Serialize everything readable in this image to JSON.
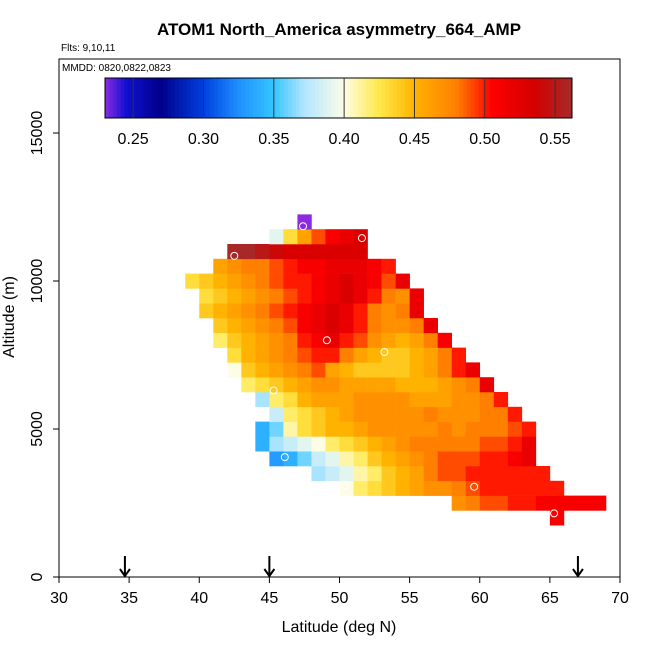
{
  "chart_data": {
    "type": "heatmap",
    "title": "ATOM1 North_America asymmetry_664_AMP",
    "flights_text": "Flts: 9,10,11",
    "mmdd_text": "MMDD: 0820,0822,0823",
    "xlabel": "Latitude (deg N)",
    "ylabel": "Altitude (m)",
    "xlim": [
      30,
      70
    ],
    "ylim": [
      0,
      17500
    ],
    "xticks": [
      30,
      35,
      40,
      45,
      50,
      55,
      60,
      65,
      70
    ],
    "yticks": [
      0,
      5000,
      10000,
      15000
    ],
    "colorbar": {
      "min": 0.23,
      "max": 0.562,
      "ticks": [
        0.25,
        0.3,
        0.35,
        0.4,
        0.45,
        0.5,
        0.55
      ],
      "tick_labels": [
        "0.25",
        "0.30",
        "0.35",
        "0.40",
        "0.45",
        "0.50",
        "0.55"
      ],
      "stops": [
        {
          "v": 0.23,
          "c": "#8a2be2"
        },
        {
          "v": 0.245,
          "c": "#1010d0"
        },
        {
          "v": 0.27,
          "c": "#00008b"
        },
        {
          "v": 0.3,
          "c": "#0040e0"
        },
        {
          "v": 0.325,
          "c": "#1e90ff"
        },
        {
          "v": 0.35,
          "c": "#35c5ff"
        },
        {
          "v": 0.372,
          "c": "#b4e6ff"
        },
        {
          "v": 0.4,
          "c": "#fdfde6"
        },
        {
          "v": 0.425,
          "c": "#ffe84a"
        },
        {
          "v": 0.45,
          "c": "#ffb300"
        },
        {
          "v": 0.48,
          "c": "#ff7f00"
        },
        {
          "v": 0.505,
          "c": "#ff0000"
        },
        {
          "v": 0.535,
          "c": "#d40000"
        },
        {
          "v": 0.562,
          "c": "#a52a2a"
        }
      ]
    },
    "cell_size": {
      "lat": 1.0,
      "alt": 500
    },
    "rows": [
      {
        "alt": 2000,
        "lat0": 65.0,
        "values": [
          0.51
        ]
      },
      {
        "alt": 2500,
        "lat0": 58.0,
        "values": [
          0.47,
          0.48,
          0.49,
          0.49,
          0.5,
          0.5,
          0.51,
          0.51,
          0.51,
          0.51,
          0.51
        ]
      },
      {
        "alt": 3000,
        "lat0": 50.0,
        "values": [
          0.4,
          0.42,
          0.43,
          0.44,
          0.45,
          0.46,
          0.47,
          0.47,
          0.48,
          0.49,
          0.5,
          0.5,
          0.5,
          0.5,
          0.5,
          0.5
        ]
      },
      {
        "alt": 3500,
        "lat0": 48.0,
        "values": [
          0.37,
          0.38,
          0.39,
          0.41,
          0.42,
          0.44,
          0.45,
          0.46,
          0.48,
          0.49,
          0.49,
          0.5,
          0.5,
          0.5,
          0.5,
          0.5,
          0.5
        ]
      },
      {
        "alt": 4000,
        "lat0": 45.0,
        "values": [
          0.33,
          0.34,
          0.36,
          0.38,
          0.39,
          0.41,
          0.42,
          0.44,
          0.45,
          0.46,
          0.47,
          0.48,
          0.49,
          0.49,
          0.49,
          0.5,
          0.5,
          0.51,
          0.52
        ]
      },
      {
        "alt": 4500,
        "lat0": 44.0,
        "values": [
          0.34,
          0.37,
          0.38,
          0.39,
          0.4,
          0.42,
          0.43,
          0.44,
          0.45,
          0.46,
          0.47,
          0.48,
          0.48,
          0.48,
          0.48,
          0.48,
          0.49,
          0.49,
          0.5,
          0.52
        ]
      },
      {
        "alt": 5000,
        "lat0": 44.0,
        "values": [
          0.34,
          0.36,
          0.41,
          0.43,
          0.44,
          0.45,
          0.45,
          0.46,
          0.47,
          0.47,
          0.47,
          0.47,
          0.47,
          0.48,
          0.47,
          0.48,
          0.48,
          0.48,
          0.49,
          0.5
        ]
      },
      {
        "alt": 5500,
        "lat0": 45.0,
        "values": [
          0.38,
          0.42,
          0.43,
          0.44,
          0.45,
          0.46,
          0.47,
          0.47,
          0.47,
          0.47,
          0.47,
          0.48,
          0.47,
          0.47,
          0.47,
          0.48,
          0.48,
          0.5
        ]
      },
      {
        "alt": 6000,
        "lat0": 44.0,
        "values": [
          0.37,
          0.42,
          0.43,
          0.45,
          0.46,
          0.46,
          0.46,
          0.47,
          0.47,
          0.47,
          0.47,
          0.46,
          0.46,
          0.46,
          0.47,
          0.47,
          0.48,
          0.5
        ]
      },
      {
        "alt": 6500,
        "lat0": 43.0,
        "values": [
          0.42,
          0.43,
          0.44,
          0.45,
          0.46,
          0.47,
          0.47,
          0.46,
          0.46,
          0.46,
          0.46,
          0.45,
          0.45,
          0.45,
          0.46,
          0.47,
          0.48,
          0.52
        ]
      },
      {
        "alt": 7000,
        "lat0": 42.0,
        "values": [
          0.4,
          0.44,
          0.45,
          0.46,
          0.47,
          0.48,
          0.49,
          0.46,
          0.45,
          0.44,
          0.44,
          0.44,
          0.44,
          0.45,
          0.46,
          0.48,
          0.5,
          0.52
        ]
      },
      {
        "alt": 7500,
        "lat0": 42.0,
        "values": [
          0.43,
          0.45,
          0.46,
          0.47,
          0.48,
          0.49,
          0.5,
          0.5,
          0.48,
          0.46,
          0.45,
          0.44,
          0.44,
          0.45,
          0.46,
          0.48,
          0.5
        ]
      },
      {
        "alt": 8000,
        "lat0": 41.0,
        "values": [
          0.42,
          0.44,
          0.45,
          0.46,
          0.47,
          0.48,
          0.5,
          0.51,
          0.52,
          0.5,
          0.49,
          0.47,
          0.46,
          0.45,
          0.46,
          0.48,
          0.51
        ]
      },
      {
        "alt": 8500,
        "lat0": 41.0,
        "values": [
          0.44,
          0.45,
          0.46,
          0.47,
          0.48,
          0.49,
          0.51,
          0.52,
          0.53,
          0.52,
          0.5,
          0.48,
          0.47,
          0.47,
          0.48,
          0.52
        ]
      },
      {
        "alt": 9000,
        "lat0": 40.0,
        "values": [
          0.44,
          0.45,
          0.46,
          0.47,
          0.48,
          0.49,
          0.5,
          0.51,
          0.52,
          0.53,
          0.52,
          0.5,
          0.48,
          0.47,
          0.48,
          0.52
        ]
      },
      {
        "alt": 9500,
        "lat0": 40.0,
        "values": [
          0.43,
          0.44,
          0.45,
          0.46,
          0.47,
          0.48,
          0.49,
          0.5,
          0.51,
          0.52,
          0.53,
          0.52,
          0.5,
          0.48,
          0.47,
          0.52
        ]
      },
      {
        "alt": 10000,
        "lat0": 39.0,
        "values": [
          0.43,
          0.44,
          0.45,
          0.46,
          0.47,
          0.48,
          0.49,
          0.5,
          0.5,
          0.51,
          0.52,
          0.53,
          0.52,
          0.51,
          0.49,
          0.52
        ]
      },
      {
        "alt": 10500,
        "lat0": 41.0,
        "values": [
          0.46,
          0.47,
          0.48,
          0.48,
          0.49,
          0.5,
          0.51,
          0.51,
          0.52,
          0.52,
          0.52,
          0.51,
          0.5
        ]
      },
      {
        "alt": 11000,
        "lat0": 42.0,
        "values": [
          0.56,
          0.56,
          0.55,
          0.54,
          0.53,
          0.53,
          0.53,
          0.53,
          0.53,
          0.53
        ]
      },
      {
        "alt": 11500,
        "lat0": 45.0,
        "values": [
          0.39,
          0.43,
          0.46,
          0.49,
          0.51,
          0.52,
          0.53
        ]
      },
      {
        "alt": 12000,
        "lat0": 47.0,
        "values": [
          0.23
        ]
      }
    ],
    "circles": [
      {
        "lat": 47.4,
        "alt": 11850
      },
      {
        "lat": 51.6,
        "alt": 11450
      },
      {
        "lat": 42.5,
        "alt": 10850
      },
      {
        "lat": 39.0,
        "alt": 9600
      },
      {
        "lat": 49.1,
        "alt": 8000
      },
      {
        "lat": 53.2,
        "alt": 7600
      },
      {
        "lat": 45.3,
        "alt": 6300
      },
      {
        "lat": 46.1,
        "alt": 4050
      },
      {
        "lat": 50.4,
        "alt": 3100
      },
      {
        "lat": 59.6,
        "alt": 3050
      },
      {
        "lat": 65.3,
        "alt": 2150
      }
    ],
    "arrows": [
      {
        "lat": 34.7
      },
      {
        "lat": 45.0
      },
      {
        "lat": 67.0
      }
    ]
  }
}
